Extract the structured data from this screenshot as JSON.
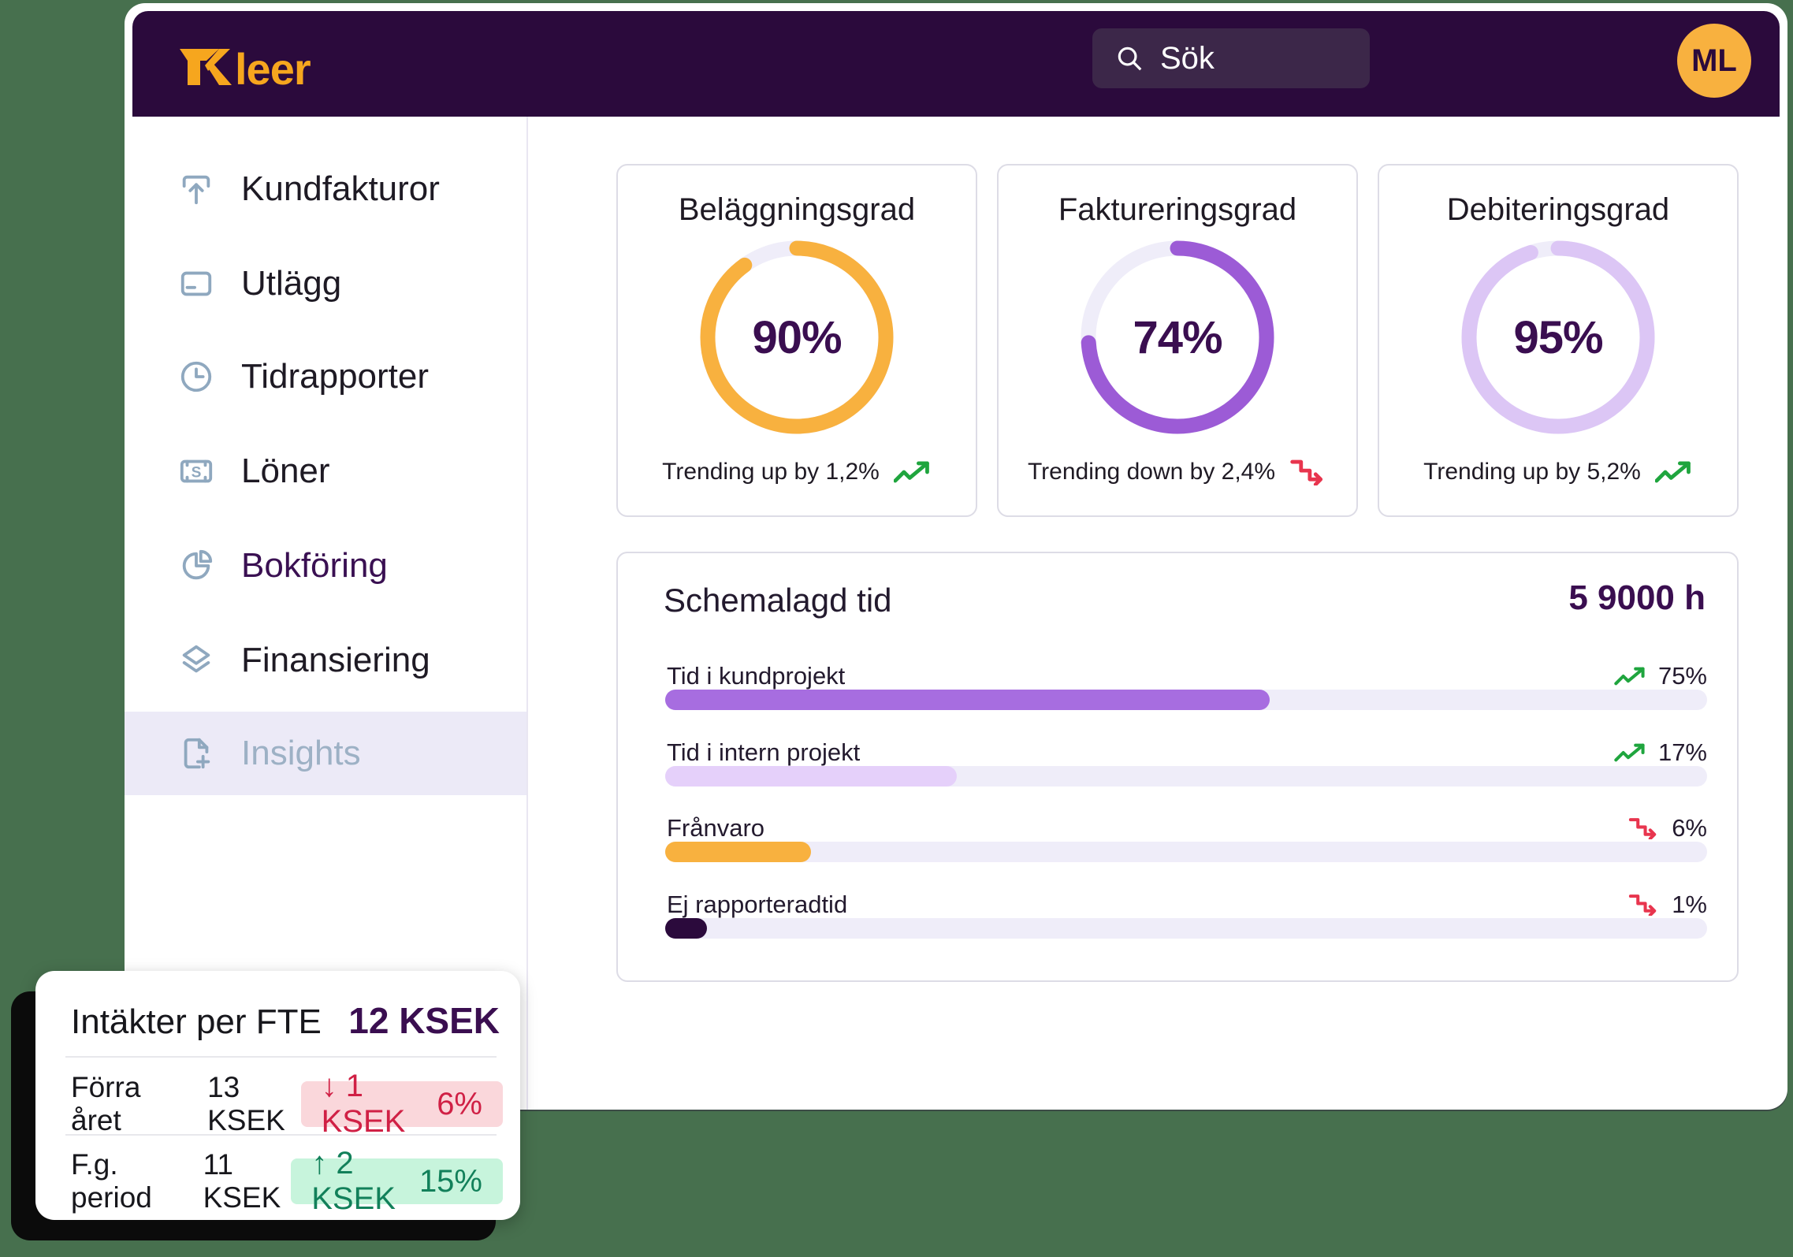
{
  "background_color": "#47704E",
  "header": {
    "logo_text": "Kleer",
    "search": {
      "placeholder": "Sök",
      "icon": "search-icon"
    },
    "avatar_initials": "ML",
    "colors": {
      "bar": "#2B0A3C",
      "search_bg": "#3C2749",
      "logo_orange": "#F6A61E",
      "avatar_orange": "#F8B13F"
    }
  },
  "sidebar": {
    "items": [
      {
        "label": "Kundfakturor",
        "icon": "upload-tray-icon",
        "active": false
      },
      {
        "label": "Utlägg",
        "icon": "credit-card-icon",
        "active": false
      },
      {
        "label": "Tidrapporter",
        "icon": "clock-icon",
        "active": false
      },
      {
        "label": "Löner",
        "icon": "banknote-icon",
        "active": false
      },
      {
        "label": "Bokföring",
        "icon": "pie-chart-icon",
        "active": false
      },
      {
        "label": "Finansiering",
        "icon": "layers-icon",
        "active": false
      },
      {
        "label": "Insights",
        "icon": "file-plus-icon",
        "active": true
      }
    ]
  },
  "kpi_cards": [
    {
      "title": "Beläggningsgrad",
      "value_pct": 90,
      "value_label": "90%",
      "trend_text": "Trending up by 1,2%",
      "trend": "up",
      "ring_color": "#F8B13F"
    },
    {
      "title": "Faktureringsgrad",
      "value_pct": 74,
      "value_label": "74%",
      "trend_text": "Trending down by 2,4%",
      "trend": "down",
      "ring_color": "#9C5BD6"
    },
    {
      "title": "Debiteringsgrad",
      "value_pct": 95,
      "value_label": "95%",
      "trend_text": "Trending up by 5,2%",
      "trend": "up",
      "ring_color": "#DCC6F5"
    }
  ],
  "schedule": {
    "title": "Schemalagd tid",
    "total_label": "5 9000 h",
    "rows": [
      {
        "label": "Tid i kundprojekt",
        "pct_label": "75%",
        "trend": "up",
        "bar_pct": 58,
        "bar_color": "#A76DE0"
      },
      {
        "label": "Tid i intern projekt",
        "pct_label": "17%",
        "trend": "up",
        "bar_pct": 28,
        "bar_color": "#E5D0FA"
      },
      {
        "label": "Frånvaro",
        "pct_label": "6%",
        "trend": "down",
        "bar_pct": 14,
        "bar_color": "#F8B13F"
      },
      {
        "label": "Ej rapporteradtid",
        "pct_label": "1%",
        "trend": "down",
        "bar_pct": 4,
        "bar_color": "#2B0A3C"
      }
    ]
  },
  "fte_card": {
    "title": "Intäkter per FTE",
    "value": "12 KSEK",
    "rows": [
      {
        "label": "Förra året",
        "value": "13 KSEK",
        "delta": "↓ 1 KSEK",
        "delta_pct": "6%",
        "direction": "down"
      },
      {
        "label": "F.g. period",
        "value": "11 KSEK",
        "delta": "↑ 2 KSEK",
        "delta_pct": "15%",
        "direction": "up"
      }
    ]
  },
  "chart_data": [
    {
      "type": "donut",
      "title": "Beläggningsgrad",
      "value": 90,
      "unit": "%",
      "annotation": "Trending up by 1,2%"
    },
    {
      "type": "donut",
      "title": "Faktureringsgrad",
      "value": 74,
      "unit": "%",
      "annotation": "Trending down by 2,4%"
    },
    {
      "type": "donut",
      "title": "Debiteringsgrad",
      "value": 95,
      "unit": "%",
      "annotation": "Trending up by 5,2%"
    },
    {
      "type": "bar",
      "title": "Schemalagd tid",
      "total": "5 9000 h",
      "categories": [
        "Tid i kundprojekt",
        "Tid i intern projekt",
        "Frånvaro",
        "Ej rapporteradtid"
      ],
      "values": [
        75,
        17,
        6,
        1
      ],
      "unit": "%",
      "trends": [
        "up",
        "up",
        "down",
        "down"
      ]
    }
  ]
}
